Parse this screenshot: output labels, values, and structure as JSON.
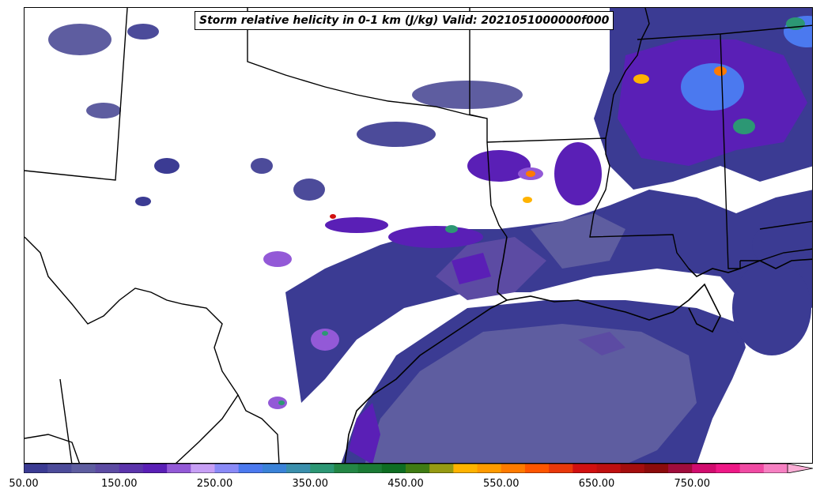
{
  "title": "Storm relative helicity in 0-1 km (J/kg) Valid: 2021051000000f000",
  "colorbar": {
    "min": 50,
    "max": 800,
    "step": 25,
    "extend": "max",
    "colors": [
      "#3b3b93",
      "#4c4b9a",
      "#5e5da0",
      "#5c4ba3",
      "#5b34ab",
      "#5a1fb6",
      "#9359d7",
      "#c79ff5",
      "#8a8af7",
      "#4b79ef",
      "#3a82d8",
      "#3a8fac",
      "#2c9774",
      "#238645",
      "#1a7a34",
      "#0e6d22",
      "#3f7b13",
      "#969a12",
      "#ffb300",
      "#ff9a00",
      "#ff7a00",
      "#ff5500",
      "#e8380a",
      "#d11010",
      "#bf0f0f",
      "#a40d0d",
      "#8b0b0b",
      "#a00c3c",
      "#d10c6e",
      "#ee1886",
      "#f04aa3",
      "#f680c2",
      "#fbaed6"
    ],
    "tick_labels": [
      "50.00",
      "150.00",
      "250.00",
      "350.00",
      "450.00",
      "550.00",
      "650.00",
      "750.00"
    ],
    "tick_values": [
      50,
      150,
      250,
      350,
      450,
      550,
      650,
      750
    ]
  },
  "map": {
    "region": "Texas / Southern Plains / Gulf Coast",
    "background_color": "#ffffff",
    "border_color": "#000000",
    "fill_colors": {
      "low": "#3b3b93",
      "mid": "#5e5da0",
      "purple": "#5a1fb6",
      "light_purple": "#c79ff5",
      "blue": "#4b79ef",
      "green": "#2c9774",
      "orange": "#ff7a00",
      "red": "#d11010"
    }
  }
}
